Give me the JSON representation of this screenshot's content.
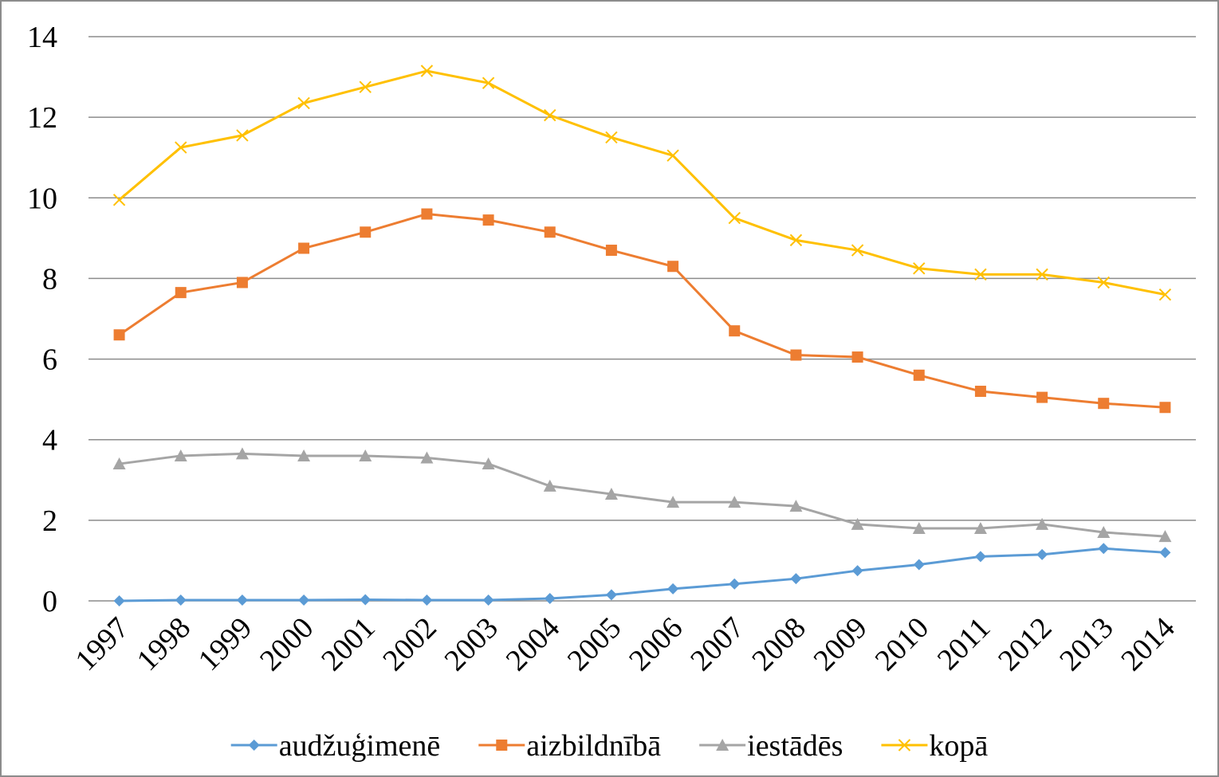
{
  "chart_data": {
    "type": "line",
    "categories": [
      "1997",
      "1998",
      "1999",
      "2000",
      "2001",
      "2002",
      "2003",
      "2004",
      "2005",
      "2006",
      "2007",
      "2008",
      "2009",
      "2010",
      "2011",
      "2012",
      "2013",
      "2014"
    ],
    "series": [
      {
        "name": "audžuģimenē",
        "color": "#5b9bd5",
        "marker": "diamond",
        "values": [
          0,
          0.02,
          0.02,
          0.02,
          0.03,
          0.02,
          0.02,
          0.06,
          0.15,
          0.3,
          0.42,
          0.55,
          0.75,
          0.9,
          1.1,
          1.15,
          1.3,
          1.2
        ]
      },
      {
        "name": "aizbildnībā",
        "color": "#ed7d31",
        "marker": "square",
        "values": [
          6.6,
          7.65,
          7.9,
          8.75,
          9.15,
          9.6,
          9.45,
          9.15,
          8.7,
          8.3,
          6.7,
          6.1,
          6.05,
          5.6,
          5.2,
          5.05,
          4.9,
          4.8
        ]
      },
      {
        "name": "iestādēs",
        "color": "#a5a5a5",
        "marker": "triangle",
        "values": [
          3.4,
          3.6,
          3.65,
          3.6,
          3.6,
          3.55,
          3.4,
          2.85,
          2.65,
          2.45,
          2.45,
          2.35,
          1.9,
          1.8,
          1.8,
          1.9,
          1.7,
          1.6
        ]
      },
      {
        "name": "kopā",
        "color": "#ffc000",
        "marker": "x",
        "values": [
          9.95,
          11.25,
          11.55,
          12.35,
          12.75,
          13.15,
          12.85,
          12.05,
          11.5,
          11.05,
          9.5,
          8.95,
          8.7,
          8.25,
          8.1,
          8.1,
          7.9,
          7.6
        ]
      }
    ],
    "ylim": [
      0,
      14
    ],
    "yticks": [
      0,
      2,
      4,
      6,
      8,
      10,
      12,
      14
    ],
    "grid": true,
    "legend": "bottom"
  }
}
